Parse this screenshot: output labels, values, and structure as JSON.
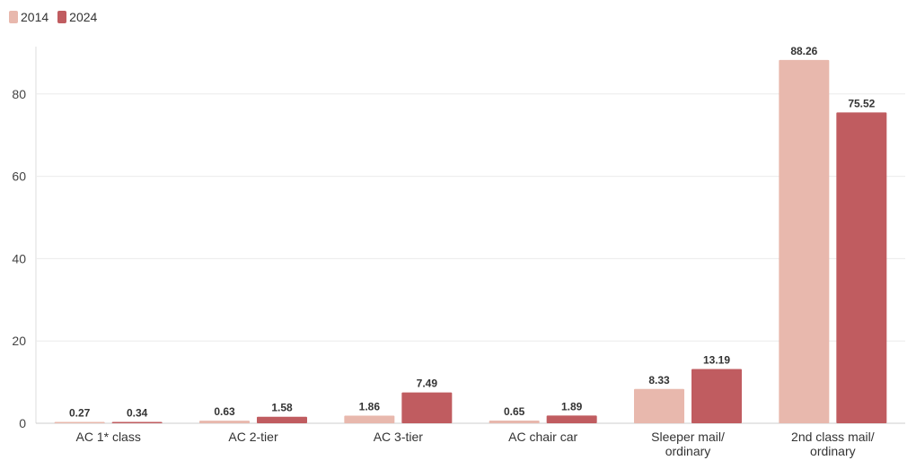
{
  "legend": [
    {
      "name": "2014",
      "color": "#e8b8ad"
    },
    {
      "name": "2024",
      "color": "#c05c60"
    }
  ],
  "chart_data": {
    "type": "bar",
    "categories": [
      [
        "AC 1* class"
      ],
      [
        "AC 2-tier"
      ],
      [
        "AC 3-tier"
      ],
      [
        "AC chair car"
      ],
      [
        "Sleeper mail/",
        "ordinary"
      ],
      [
        "2nd class mail/",
        "ordinary"
      ]
    ],
    "series": [
      {
        "name": "2014",
        "color": "#e8b8ad",
        "values": [
          0.27,
          0.63,
          1.86,
          0.65,
          8.33,
          88.26
        ]
      },
      {
        "name": "2024",
        "color": "#c05c60",
        "values": [
          0.34,
          1.58,
          7.49,
          1.89,
          13.19,
          75.52
        ]
      }
    ],
    "value_labels": [
      [
        "0.27",
        "0.63",
        "1.86",
        "0.65",
        "8.33",
        "88.26"
      ],
      [
        "0.34",
        "1.58",
        "7.49",
        "1.89",
        "13.19",
        "75.52"
      ]
    ],
    "yticks": [
      "0",
      "20",
      "40",
      "60",
      "80"
    ],
    "ylim": [
      0,
      91.5
    ],
    "grid": true,
    "legend_position": "top-left"
  }
}
